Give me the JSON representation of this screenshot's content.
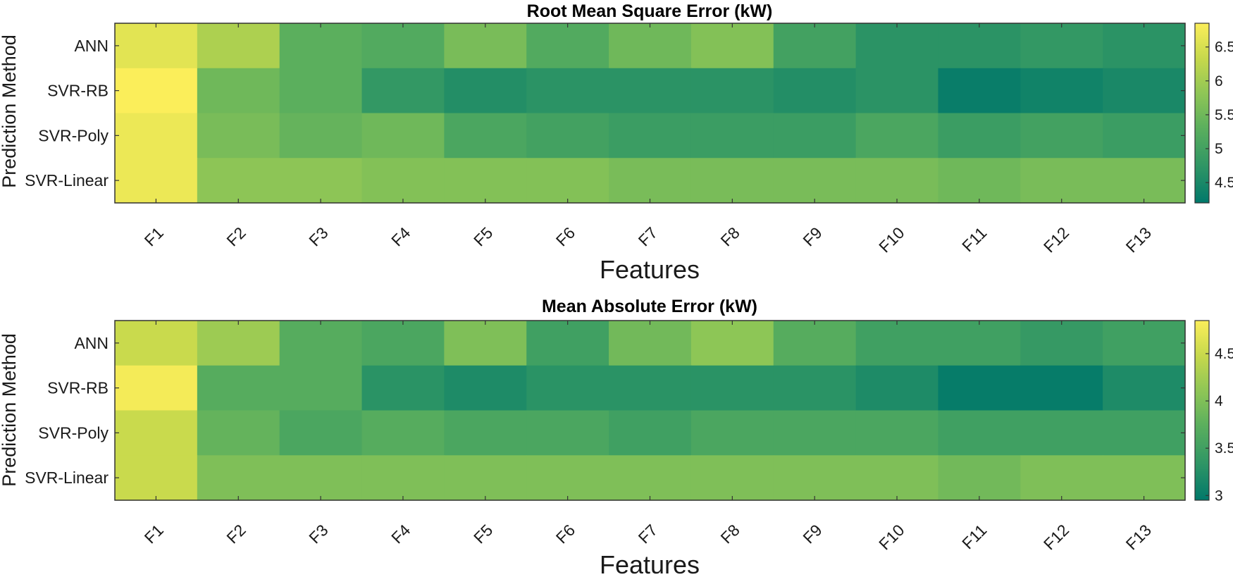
{
  "chart_data": [
    {
      "type": "heatmap",
      "title": "Root Mean Square Error (kW)",
      "xlabel": "Features",
      "ylabel": "Prediction Method",
      "x_categories": [
        "F1",
        "F2",
        "F3",
        "F4",
        "F5",
        "F6",
        "F7",
        "F8",
        "F9",
        "F10",
        "F11",
        "F12",
        "F13"
      ],
      "y_categories": [
        "ANN",
        "SVR-RB",
        "SVR-Poly",
        "SVR-Linear"
      ],
      "values": [
        [
          6.6,
          6.1,
          5.3,
          5.2,
          5.6,
          5.2,
          5.5,
          5.7,
          5.0,
          4.7,
          4.7,
          4.8,
          4.7
        ],
        [
          6.9,
          5.5,
          5.3,
          4.8,
          4.6,
          4.7,
          4.7,
          4.7,
          4.6,
          4.7,
          4.3,
          4.4,
          4.5
        ],
        [
          6.7,
          5.6,
          5.4,
          5.5,
          5.1,
          5.0,
          4.9,
          4.9,
          4.9,
          5.1,
          4.9,
          5.0,
          4.9
        ],
        [
          6.7,
          5.8,
          5.8,
          5.7,
          5.7,
          5.7,
          5.6,
          5.6,
          5.6,
          5.6,
          5.5,
          5.6,
          5.6
        ]
      ],
      "colorbar": {
        "range": [
          4.2,
          6.85
        ],
        "ticks": [
          "4.5",
          "5",
          "5.5",
          "6",
          "6.5"
        ]
      },
      "colormap": [
        "#00786a",
        "#2e9565",
        "#57ad5e",
        "#8cc556",
        "#c5d84c",
        "#fbee5a"
      ],
      "grid": false
    },
    {
      "type": "heatmap",
      "title": "Mean Absolute Error (kW)",
      "xlabel": "Features",
      "ylabel": "Prediction Method",
      "x_categories": [
        "F1",
        "F2",
        "F3",
        "F4",
        "F5",
        "F6",
        "F7",
        "F8",
        "F9",
        "F10",
        "F11",
        "F12",
        "F13"
      ],
      "y_categories": [
        "ANN",
        "SVR-RB",
        "SVR-Poly",
        "SVR-Linear"
      ],
      "values": [
        [
          4.5,
          4.2,
          3.7,
          3.6,
          4.0,
          3.5,
          3.9,
          4.1,
          3.7,
          3.5,
          3.5,
          3.4,
          3.5
        ],
        [
          4.8,
          3.7,
          3.7,
          3.3,
          3.2,
          3.3,
          3.3,
          3.3,
          3.3,
          3.2,
          3.0,
          3.0,
          3.2
        ],
        [
          4.5,
          3.8,
          3.6,
          3.7,
          3.6,
          3.6,
          3.5,
          3.6,
          3.6,
          3.6,
          3.5,
          3.5,
          3.5
        ],
        [
          4.5,
          4.0,
          4.0,
          4.0,
          4.0,
          4.0,
          4.0,
          4.0,
          4.0,
          4.0,
          3.9,
          4.0,
          4.0
        ]
      ],
      "colorbar": {
        "range": [
          2.95,
          4.85
        ],
        "ticks": [
          "3",
          "3.5",
          "4",
          "4.5"
        ]
      },
      "colormap": [
        "#00786a",
        "#2e9565",
        "#57ad5e",
        "#8cc556",
        "#c5d84c",
        "#fbee5a"
      ],
      "grid": false
    }
  ]
}
